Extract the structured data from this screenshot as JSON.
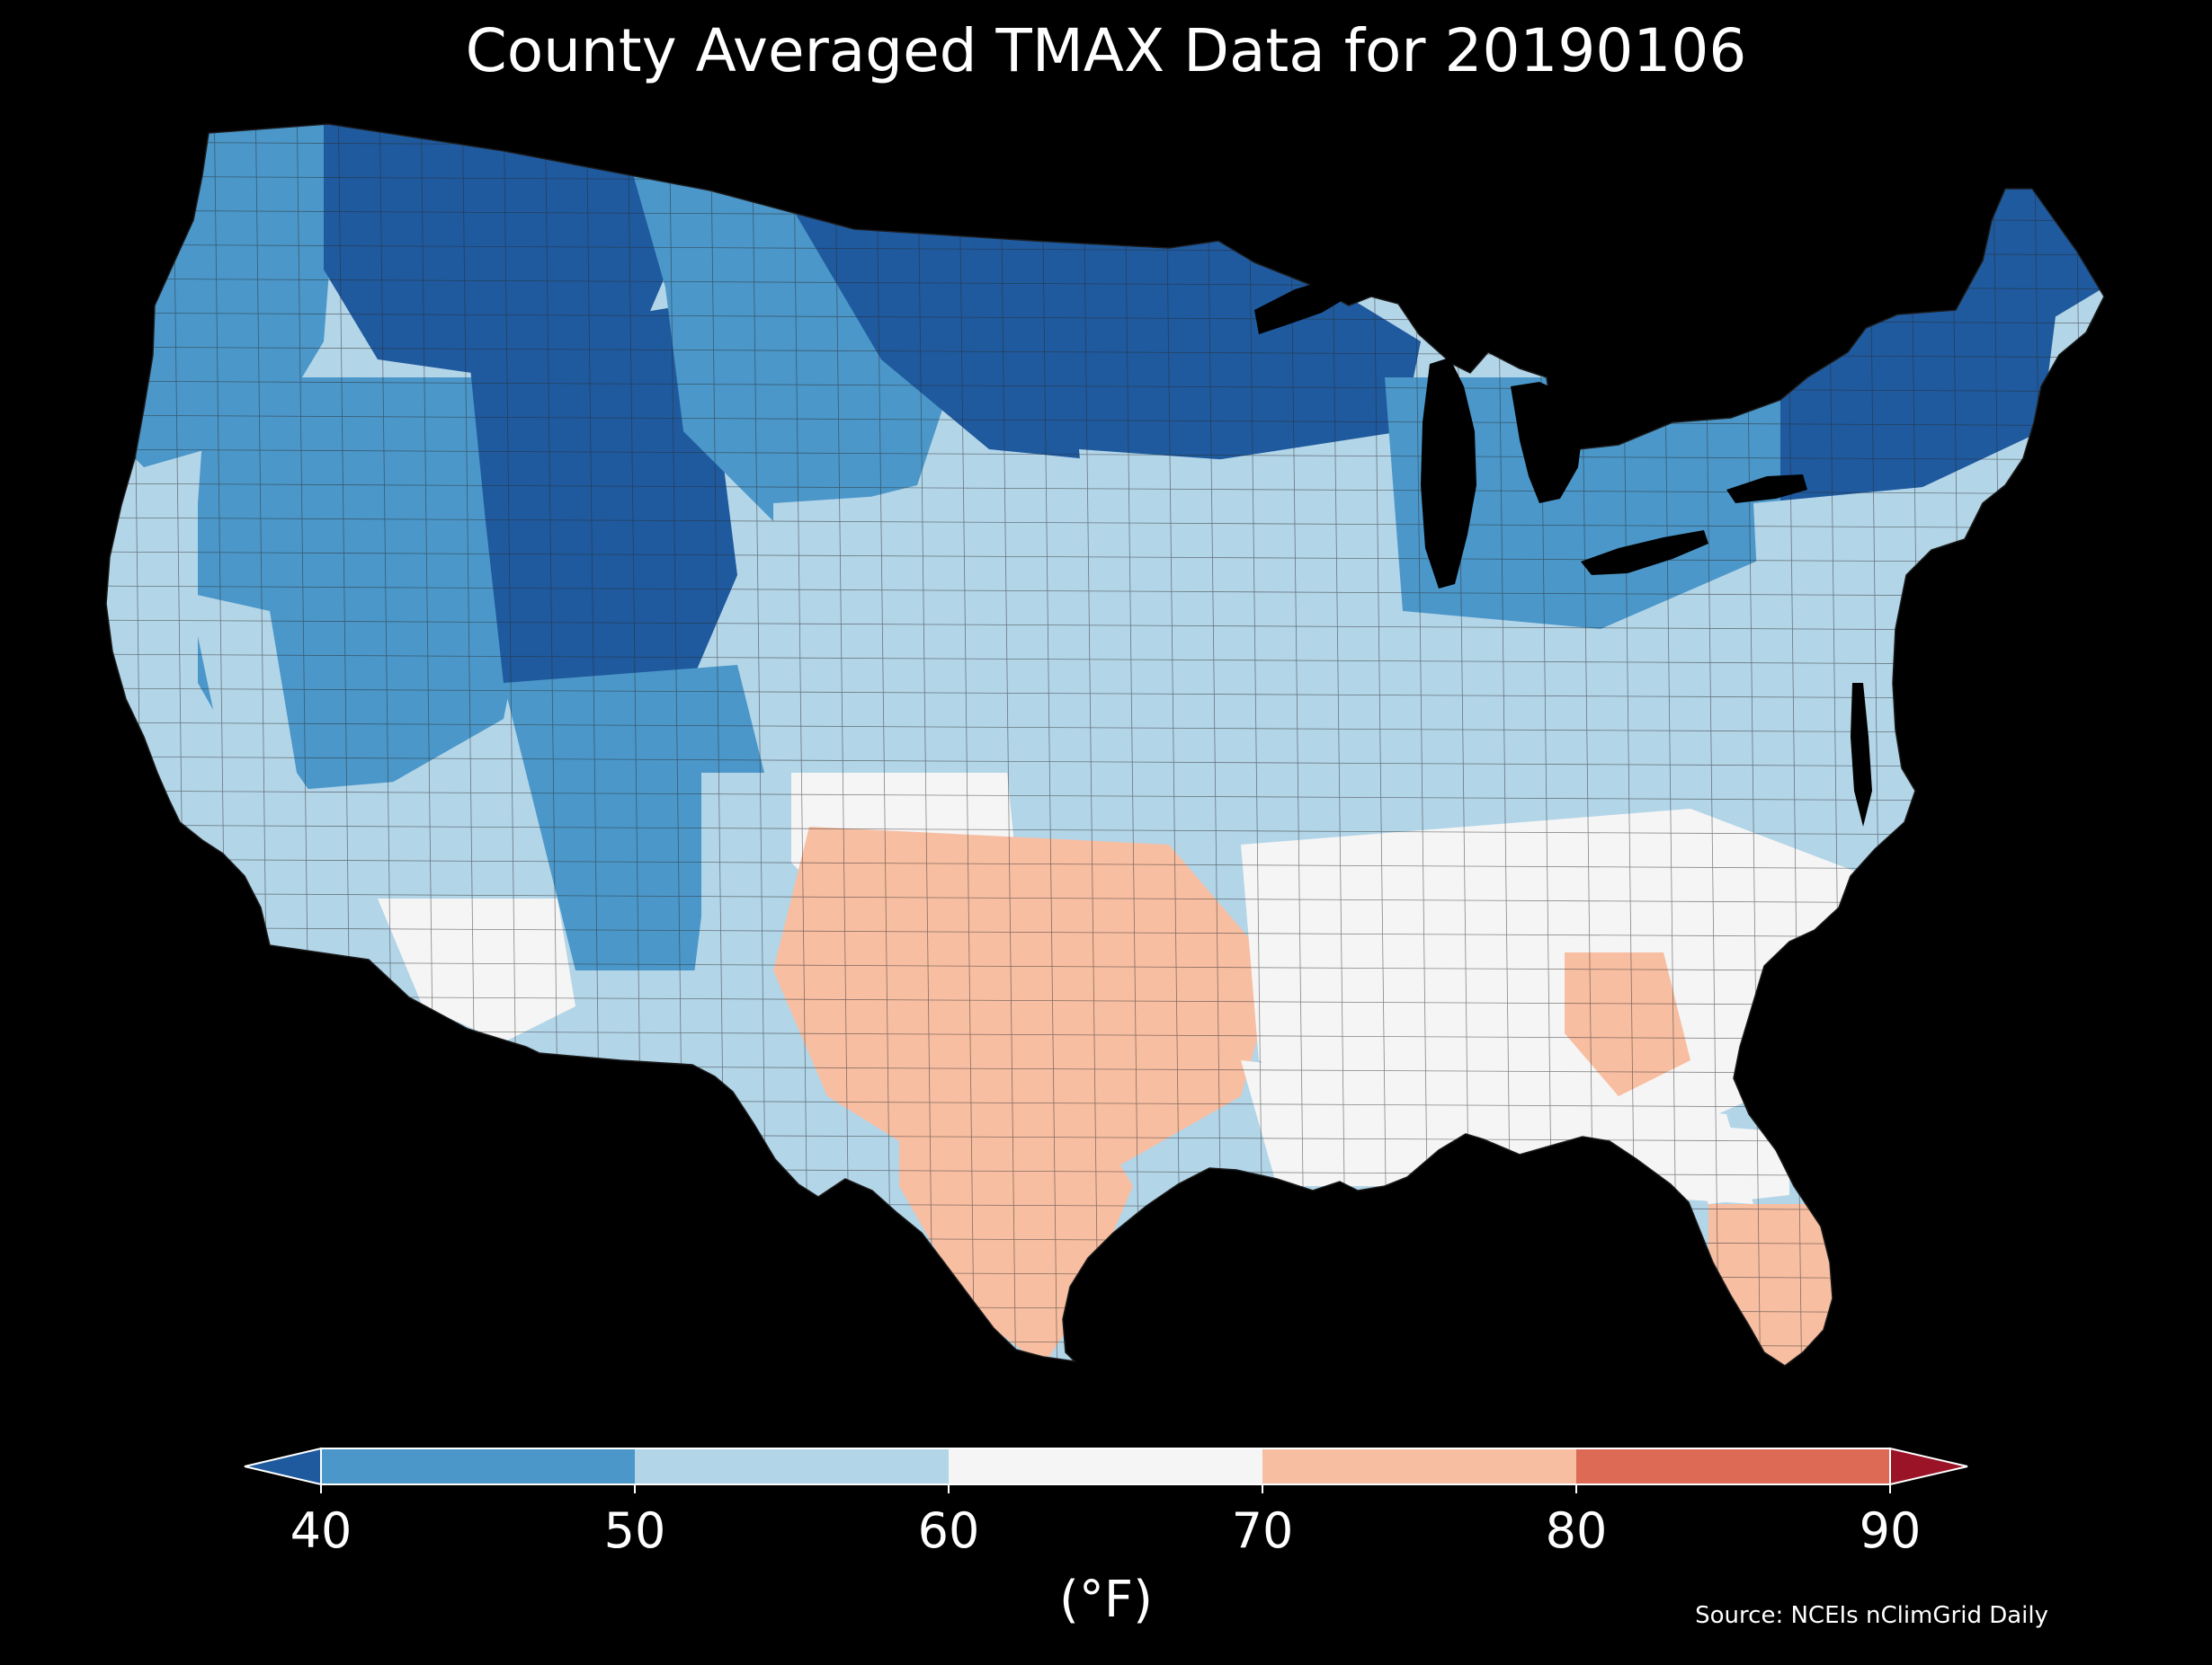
{
  "title": "County Averaged TMAX Data for 20190106",
  "source": "Source: NCEIs nClimGrid Daily",
  "colorbar": {
    "units": "(°F)",
    "ticks": [
      "40",
      "50",
      "60",
      "70",
      "80",
      "90"
    ],
    "bins": [
      {
        "min": null,
        "max": 40,
        "color": "#1f5a9e"
      },
      {
        "min": 40,
        "max": 50,
        "color": "#4b97c9"
      },
      {
        "min": 50,
        "max": 60,
        "color": "#b3d5e8"
      },
      {
        "min": 60,
        "max": 70,
        "color": "#f5f5f5"
      },
      {
        "min": 70,
        "max": 80,
        "color": "#f7bea2"
      },
      {
        "min": 80,
        "max": 90,
        "color": "#dc6a55"
      },
      {
        "min": 90,
        "max": null,
        "color": "#9a1327"
      }
    ]
  },
  "map_regions": [
    {
      "id": "pacific-northwest",
      "tmax_f": 42
    },
    {
      "id": "northern-rockies",
      "tmax_f": 38
    },
    {
      "id": "great-basin",
      "tmax_f": 43
    },
    {
      "id": "wasatch-uinta-colorado-high",
      "tmax_f": 33
    },
    {
      "id": "california-coast",
      "tmax_f": 54
    },
    {
      "id": "central-valley",
      "tmax_f": 52
    },
    {
      "id": "southern-california-desert",
      "tmax_f": 58
    },
    {
      "id": "southwest-arizona",
      "tmax_f": 62
    },
    {
      "id": "four-corners-high",
      "tmax_f": 45
    },
    {
      "id": "new-mexico",
      "tmax_f": 50
    },
    {
      "id": "northern-plains",
      "tmax_f": 40
    },
    {
      "id": "upper-midwest-north",
      "tmax_f": 35
    },
    {
      "id": "central-plains",
      "tmax_f": 57
    },
    {
      "id": "high-plains-south",
      "tmax_f": 62
    },
    {
      "id": "texas-oklahoma",
      "tmax_f": 72
    },
    {
      "id": "south-texas",
      "tmax_f": 76
    },
    {
      "id": "midwest",
      "tmax_f": 55
    },
    {
      "id": "ohio-valley",
      "tmax_f": 57
    },
    {
      "id": "appalachians",
      "tmax_f": 50
    },
    {
      "id": "southeast",
      "tmax_f": 62
    },
    {
      "id": "georgia-interior",
      "tmax_f": 70
    },
    {
      "id": "gulf-coast",
      "tmax_f": 64
    },
    {
      "id": "north-florida",
      "tmax_f": 68
    },
    {
      "id": "south-florida",
      "tmax_f": 77
    },
    {
      "id": "great-lakes",
      "tmax_f": 45
    },
    {
      "id": "new-england",
      "tmax_f": 37
    },
    {
      "id": "northern-new-england",
      "tmax_f": 34
    },
    {
      "id": "mid-atlantic",
      "tmax_f": 52
    }
  ]
}
